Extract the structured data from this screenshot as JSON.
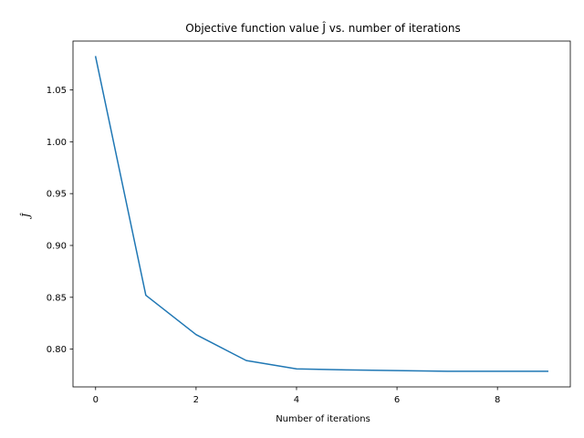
{
  "chart_data": {
    "type": "line",
    "title": "Objective function value Ĵ vs. number of iterations",
    "xlabel": "Number of iterations",
    "ylabel": "Ĵ",
    "x": [
      0,
      1,
      2,
      3,
      4,
      5,
      6,
      7,
      8,
      9
    ],
    "series": [
      {
        "values": [
          1.082,
          0.852,
          0.814,
          0.789,
          0.781,
          0.78,
          0.7793,
          0.7787,
          0.7787,
          0.7787
        ],
        "color": "#1f77b4"
      }
    ],
    "xlim": [
      -0.45,
      9.45
    ],
    "ylim": [
      0.7636,
      1.0971
    ],
    "xticks": [
      0,
      2,
      4,
      6,
      8
    ],
    "xtick_labels": [
      "0",
      "2",
      "4",
      "6",
      "8"
    ],
    "yticks": [
      0.8,
      0.85,
      0.9,
      0.95,
      1.0,
      1.05
    ],
    "ytick_labels": [
      "0.80",
      "0.85",
      "0.90",
      "0.95",
      "1.00",
      "1.05"
    ],
    "grid": false,
    "legend": "none"
  }
}
